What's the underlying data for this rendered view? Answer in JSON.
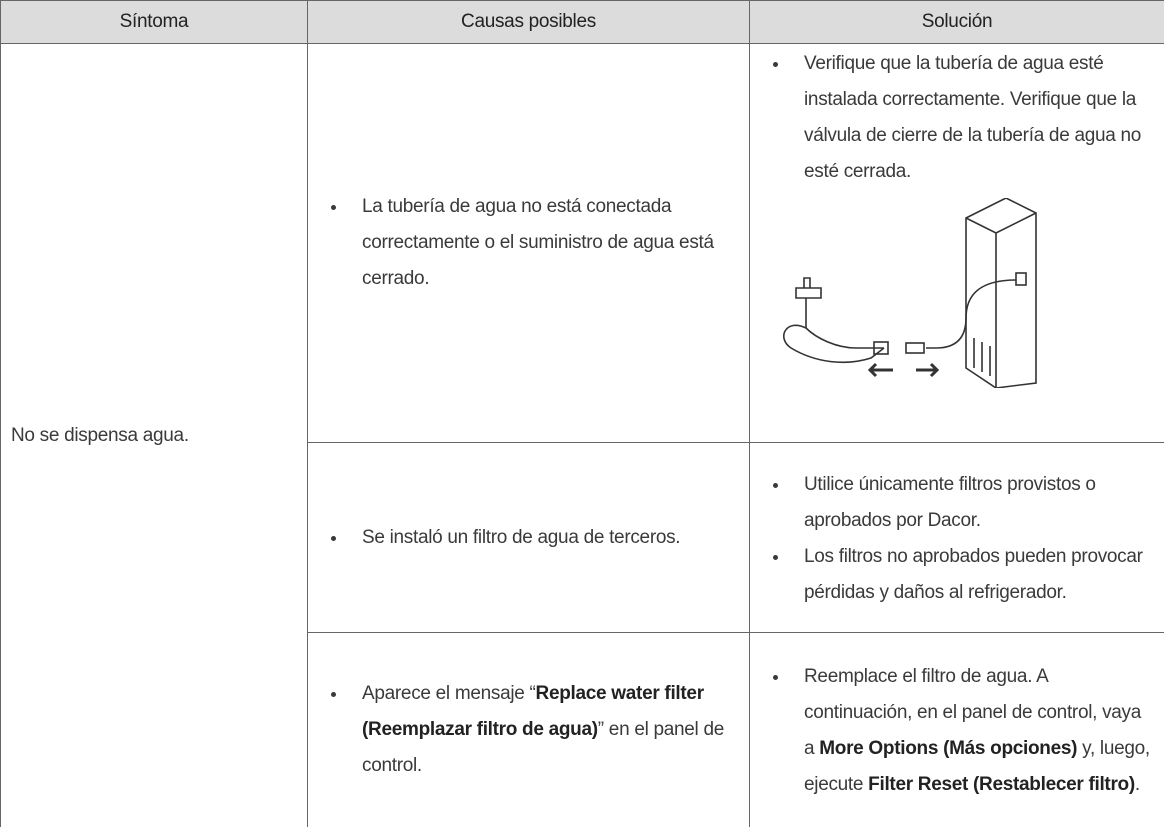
{
  "table": {
    "headers": [
      "Síntoma",
      "Causas posibles",
      "Solución"
    ],
    "symptom": "No se dispensa agua.",
    "rows": [
      {
        "cause": [
          {
            "text": "La tubería de agua no está conectada correctamente o el suministro de agua está cerrado."
          }
        ],
        "solution": [
          [
            {
              "text": "Verifique que la tubería de agua esté instalada correctamente. Verifique que la válvula de cierre de la tubería de agua no esté cerrada."
            }
          ]
        ]
      },
      {
        "cause": [
          {
            "text": "Se instaló un filtro de agua de terceros."
          }
        ],
        "solution": [
          [
            {
              "text": "Utilice únicamente filtros provistos o aprobados por Dacor."
            }
          ],
          [
            {
              "text": "Los filtros no aprobados pueden provocar pérdidas y daños al refrigerador."
            }
          ]
        ]
      },
      {
        "cause": [
          {
            "text": "Aparece el mensaje “"
          },
          {
            "bold": "Replace water filter (Reemplazar filtro de agua)"
          },
          {
            "text": "” en el panel de control."
          }
        ],
        "solution": [
          [
            {
              "text": "Reemplace el filtro de agua. A continuación, en el panel de control, vaya a "
            },
            {
              "bold": "More Options (Más opciones)"
            },
            {
              "text": " y, luego, ejecute "
            },
            {
              "bold": "Filter Reset (Restablecer filtro)"
            },
            {
              "text": "."
            }
          ]
        ]
      }
    ]
  }
}
